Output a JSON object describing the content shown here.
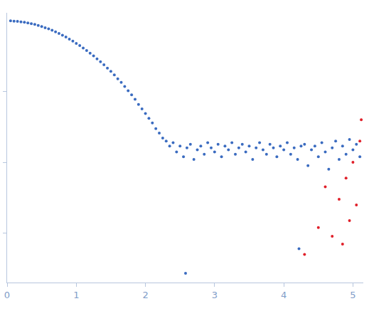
{
  "chart_data": {
    "type": "scatter",
    "log": "y",
    "grid": false,
    "tick_labels": "x",
    "xlim": [
      0,
      5.15
    ],
    "xticks": [
      0,
      1,
      2,
      3,
      4,
      5
    ],
    "ylim": [
      0.0002,
      1.3
    ],
    "yticks": [
      0.1,
      0.01,
      0.001
    ],
    "series": [
      {
        "color": "#3a6bc0",
        "marker": "circle",
        "x": [
          0.05,
          0.1,
          0.15,
          0.2,
          0.25,
          0.3,
          0.35,
          0.4,
          0.45,
          0.5,
          0.55,
          0.6,
          0.65,
          0.7,
          0.75,
          0.8,
          0.85,
          0.9,
          0.95,
          1.0,
          1.05,
          1.1,
          1.15,
          1.2,
          1.25,
          1.3,
          1.35,
          1.4,
          1.45,
          1.5,
          1.55,
          1.6,
          1.65,
          1.7,
          1.75,
          1.8,
          1.85,
          1.9,
          1.95,
          2.0,
          2.05,
          2.1,
          2.15,
          2.2,
          2.25,
          2.3,
          2.35,
          2.4,
          2.45,
          2.5,
          2.55,
          2.58,
          2.6,
          2.65,
          2.7,
          2.75,
          2.8,
          2.85,
          2.9,
          2.95,
          3.0,
          3.05,
          3.1,
          3.15,
          3.2,
          3.25,
          3.3,
          3.35,
          3.4,
          3.45,
          3.5,
          3.55,
          3.6,
          3.65,
          3.7,
          3.75,
          3.8,
          3.85,
          3.9,
          3.95,
          4.0,
          4.05,
          4.1,
          4.15,
          4.2,
          4.22,
          4.25,
          4.3,
          4.35,
          4.4,
          4.45,
          4.5,
          4.55,
          4.6,
          4.65,
          4.7,
          4.75,
          4.8,
          4.85,
          4.9,
          4.95,
          5.0,
          5.05,
          5.1
        ],
        "values": [
          1.0,
          0.99,
          0.985,
          0.97,
          0.955,
          0.936,
          0.914,
          0.89,
          0.863,
          0.834,
          0.8,
          0.77,
          0.735,
          0.7,
          0.664,
          0.627,
          0.59,
          0.553,
          0.517,
          0.48,
          0.447,
          0.413,
          0.38,
          0.35,
          0.32,
          0.29,
          0.264,
          0.24,
          0.215,
          0.193,
          0.172,
          0.152,
          0.135,
          0.118,
          0.103,
          0.09,
          0.078,
          0.066,
          0.057,
          0.049,
          0.042,
          0.036,
          0.03,
          0.026,
          0.022,
          0.02,
          0.017,
          0.019,
          0.014,
          0.017,
          0.012,
          0.00027,
          0.016,
          0.018,
          0.011,
          0.015,
          0.017,
          0.013,
          0.019,
          0.016,
          0.014,
          0.018,
          0.012,
          0.017,
          0.015,
          0.019,
          0.013,
          0.016,
          0.018,
          0.014,
          0.017,
          0.011,
          0.016,
          0.019,
          0.015,
          0.013,
          0.018,
          0.016,
          0.012,
          0.017,
          0.015,
          0.019,
          0.013,
          0.016,
          0.011,
          0.0006,
          0.017,
          0.018,
          0.009,
          0.015,
          0.017,
          0.012,
          0.019,
          0.014,
          0.008,
          0.016,
          0.02,
          0.011,
          0.017,
          0.013,
          0.021,
          0.015,
          0.018,
          0.012
        ]
      },
      {
        "color": "#e0202a",
        "marker": "circle",
        "x": [
          4.3,
          4.5,
          4.6,
          4.7,
          4.8,
          4.85,
          4.9,
          4.95,
          5.0,
          5.05,
          5.1,
          5.12
        ],
        "values": [
          0.0005,
          0.0012,
          0.0045,
          0.0009,
          0.003,
          0.0007,
          0.006,
          0.0015,
          0.01,
          0.0025,
          0.02,
          0.04
        ]
      }
    ]
  }
}
